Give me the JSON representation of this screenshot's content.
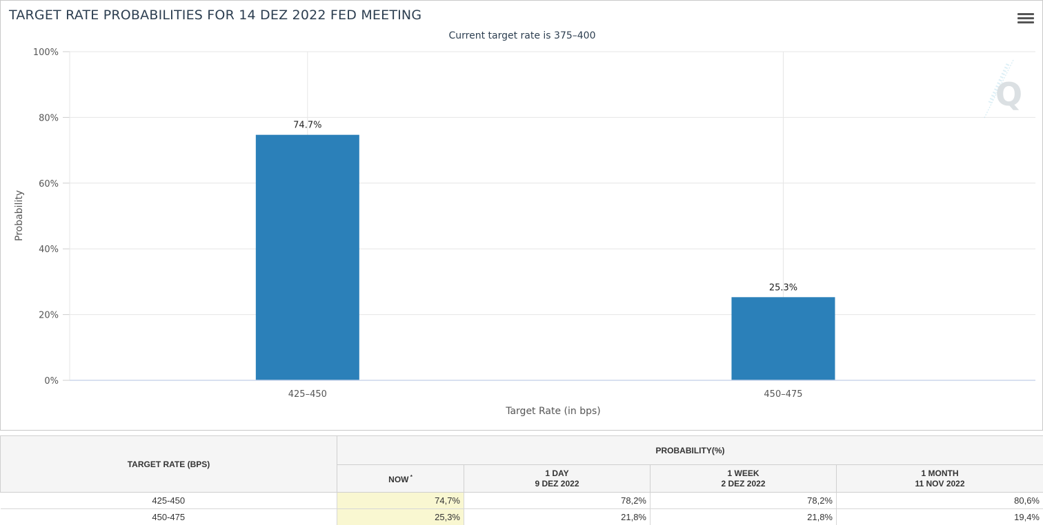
{
  "chart_data": {
    "type": "bar",
    "title": "TARGET RATE PROBABILITIES FOR 14 DEZ 2022 FED MEETING",
    "subtitle": "Current target rate is 375–400",
    "categories": [
      "425–450",
      "450–475"
    ],
    "values": [
      74.7,
      25.3
    ],
    "data_labels": [
      "74.7%",
      "25.3%"
    ],
    "xlabel": "Target Rate (in bps)",
    "ylabel": "Probability",
    "ylim": [
      0,
      100
    ],
    "yticks": [
      "0%",
      "20%",
      "40%",
      "60%",
      "80%",
      "100%"
    ],
    "grid": true,
    "bar_color": "#2b80b9"
  },
  "table": {
    "header_left": "TARGET RATE (BPS)",
    "header_group": "PROBABILITY(%)",
    "columns": [
      {
        "line1": "NOW",
        "line2": "",
        "sup": "*"
      },
      {
        "line1": "1 DAY",
        "line2": "9 DEZ 2022",
        "sup": ""
      },
      {
        "line1": "1 WEEK",
        "line2": "2 DEZ 2022",
        "sup": ""
      },
      {
        "line1": "1 MONTH",
        "line2": "11 NOV 2022",
        "sup": ""
      }
    ],
    "rows": [
      {
        "rate": "425-450",
        "now": "74,7%",
        "day": "78,2%",
        "week": "78,2%",
        "month": "80,6%"
      },
      {
        "rate": "450-475",
        "now": "25,3%",
        "day": "21,8%",
        "week": "21,8%",
        "month": "19,4%"
      }
    ],
    "highlight_color": "#f9f7d1"
  }
}
